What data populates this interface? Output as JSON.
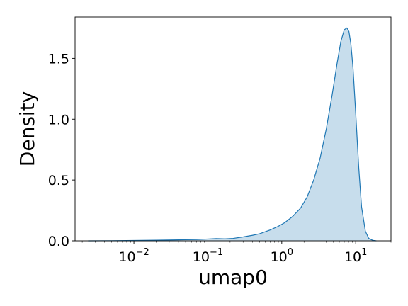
{
  "chart_data": {
    "type": "area",
    "title": "",
    "xlabel": "umap0",
    "ylabel": "Density",
    "x_scale": "log",
    "xlim": [
      0.0016,
      30
    ],
    "ylim": [
      0.0,
      1.84
    ],
    "grid": false,
    "legend": "none",
    "x_ticks": [
      {
        "value": 0.01,
        "base": "10",
        "exp": "−2"
      },
      {
        "value": 0.1,
        "base": "10",
        "exp": "−1"
      },
      {
        "value": 1,
        "base": "10",
        "exp": "0"
      },
      {
        "value": 10,
        "base": "10",
        "exp": "1"
      }
    ],
    "y_ticks": [
      {
        "value": 0.0,
        "label": "0.0"
      },
      {
        "value": 0.5,
        "label": "0.5"
      },
      {
        "value": 1.0,
        "label": "1.0"
      },
      {
        "value": 1.5,
        "label": "1.5"
      }
    ],
    "series": [
      {
        "color": "#1f77b4",
        "fill_color": "#1f77b4",
        "fill_opacity": 0.25,
        "x": [
          0.0024,
          0.005,
          0.01,
          0.02,
          0.04,
          0.07,
          0.1,
          0.13,
          0.17,
          0.22,
          0.3,
          0.4,
          0.5,
          0.7,
          0.9,
          1.1,
          1.4,
          1.8,
          2.2,
          2.7,
          3.3,
          4.0,
          4.8,
          5.6,
          6.3,
          7.0,
          7.6,
          8.1,
          8.6,
          9.2,
          10.0,
          11.0,
          12.0,
          13.5,
          15.0,
          17.0,
          19.0
        ],
        "y": [
          0.0,
          0.001,
          0.003,
          0.005,
          0.008,
          0.011,
          0.015,
          0.018,
          0.016,
          0.02,
          0.032,
          0.045,
          0.058,
          0.09,
          0.12,
          0.15,
          0.2,
          0.27,
          0.36,
          0.5,
          0.68,
          0.92,
          1.2,
          1.46,
          1.64,
          1.735,
          1.75,
          1.72,
          1.62,
          1.42,
          1.05,
          0.6,
          0.28,
          0.08,
          0.02,
          0.004,
          0.0
        ]
      }
    ]
  }
}
